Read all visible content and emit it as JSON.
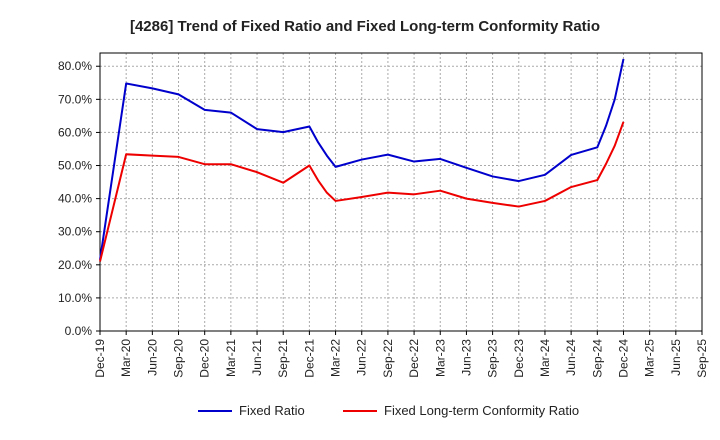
{
  "chart_data": {
    "type": "line",
    "title": "[4286]  Trend of Fixed Ratio and Fixed Long-term Conformity Ratio",
    "xlabel": "",
    "ylabel": "",
    "ylim": [
      0,
      84
    ],
    "yticks": [
      0,
      10,
      20,
      30,
      40,
      50,
      60,
      70,
      80
    ],
    "ytick_labels": [
      "0.0%",
      "10.0%",
      "20.0%",
      "30.0%",
      "40.0%",
      "50.0%",
      "60.0%",
      "70.0%",
      "80.0%"
    ],
    "xlim": [
      0,
      69
    ],
    "xtick_positions": [
      0,
      3,
      6,
      9,
      12,
      15,
      18,
      21,
      24,
      27,
      30,
      33,
      36,
      39,
      42,
      45,
      48,
      51,
      54,
      57,
      60,
      63,
      66,
      69
    ],
    "xtick_labels": [
      "Dec-19",
      "Mar-20",
      "Jun-20",
      "Sep-20",
      "Dec-20",
      "Mar-21",
      "Jun-21",
      "Sep-21",
      "Dec-21",
      "Mar-22",
      "Jun-22",
      "Sep-22",
      "Dec-22",
      "Mar-23",
      "Jun-23",
      "Sep-23",
      "Dec-23",
      "Mar-24",
      "Jun-24",
      "Sep-24",
      "Dec-24",
      "Mar-25",
      "Jun-25",
      "Sep-25"
    ],
    "grid": true,
    "legend_position": "bottom",
    "series": [
      {
        "name": "Fixed Ratio",
        "color": "#0000cc",
        "x": [
          0,
          3,
          6,
          9,
          12,
          15,
          18,
          21,
          24,
          25,
          26,
          27,
          30,
          33,
          36,
          39,
          42,
          45,
          48,
          51,
          54,
          57,
          58,
          59,
          60
        ],
        "y": [
          21.5,
          74.8,
          73.3,
          71.5,
          66.8,
          66.0,
          61.0,
          60.1,
          61.8,
          57.0,
          53.0,
          49.6,
          51.8,
          53.3,
          51.2,
          52.0,
          49.3,
          46.7,
          45.3,
          47.2,
          53.2,
          55.5,
          62.0,
          70.0,
          82.2
        ]
      },
      {
        "name": "Fixed Long-term Conformity Ratio",
        "color": "#ee0000",
        "x": [
          0,
          3,
          6,
          9,
          12,
          15,
          18,
          21,
          24,
          25,
          26,
          27,
          30,
          33,
          36,
          39,
          42,
          45,
          48,
          51,
          54,
          57,
          58,
          59,
          60
        ],
        "y": [
          21.0,
          53.4,
          53.0,
          52.6,
          50.4,
          50.4,
          48.0,
          44.8,
          50.0,
          45.5,
          41.8,
          39.3,
          40.5,
          41.8,
          41.3,
          42.4,
          40.0,
          38.7,
          37.6,
          39.3,
          43.5,
          45.6,
          50.5,
          56.0,
          63.2
        ]
      }
    ]
  }
}
